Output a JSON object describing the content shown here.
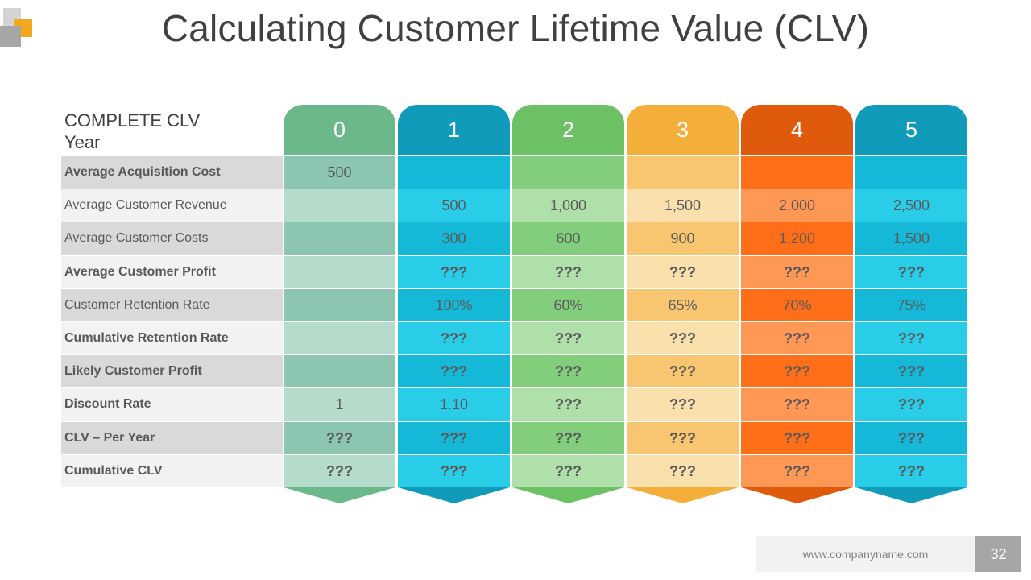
{
  "title": "Calculating Customer Lifetime Value (CLV)",
  "header_label_line1": "COMPLETE CLV",
  "header_label_line2": "Year",
  "years": [
    "0",
    "1",
    "2",
    "3",
    "4",
    "5"
  ],
  "colors": {
    "header": [
      "#6bb88a",
      "#119bbb",
      "#6cc164",
      "#f4ae3a",
      "#df5a0c",
      "#119bbb"
    ],
    "dark": [
      "#8cc6b1",
      "#16b8d8",
      "#82ce7c",
      "#f8c670",
      "#ff6e19",
      "#16b8d8"
    ],
    "light": [
      "#b5dccb",
      "#29cde8",
      "#b0e0aa",
      "#fae0ad",
      "#ff9854",
      "#29cde8"
    ]
  },
  "rows": [
    {
      "label": "Average Acquisition Cost",
      "bold": true,
      "values": [
        "500",
        "",
        "",
        "",
        "",
        ""
      ]
    },
    {
      "label": "Average Customer Revenue",
      "bold": false,
      "values": [
        "",
        "500",
        "1,000",
        "1,500",
        "2,000",
        "2,500"
      ]
    },
    {
      "label": "Average Customer Costs",
      "bold": false,
      "values": [
        "",
        "300",
        "600",
        "900",
        "1,200",
        "1,500"
      ]
    },
    {
      "label": "Average Customer Profit",
      "bold": true,
      "values": [
        "",
        "???",
        "???",
        "???",
        "???",
        "???"
      ]
    },
    {
      "label": "Customer Retention Rate",
      "bold": false,
      "values": [
        "",
        "100%",
        "60%",
        "65%",
        "70%",
        "75%"
      ]
    },
    {
      "label": "Cumulative Retention Rate",
      "bold": true,
      "values": [
        "",
        "???",
        "???",
        "???",
        "???",
        "???"
      ]
    },
    {
      "label": "Likely Customer Profit",
      "bold": true,
      "values": [
        "",
        "???",
        "???",
        "???",
        "???",
        "???"
      ]
    },
    {
      "label": "Discount Rate",
      "bold": true,
      "values": [
        "1",
        "1.10",
        "???",
        "???",
        "???",
        "???"
      ]
    },
    {
      "label": "CLV – Per Year",
      "bold": true,
      "values": [
        "???",
        "???",
        "???",
        "???",
        "???",
        "???"
      ]
    },
    {
      "label": "Cumulative CLV",
      "bold": true,
      "values": [
        "???",
        "???",
        "???",
        "???",
        "???",
        "???"
      ]
    }
  ],
  "footer": {
    "website": "www.companyname.com",
    "page_number": "32"
  }
}
